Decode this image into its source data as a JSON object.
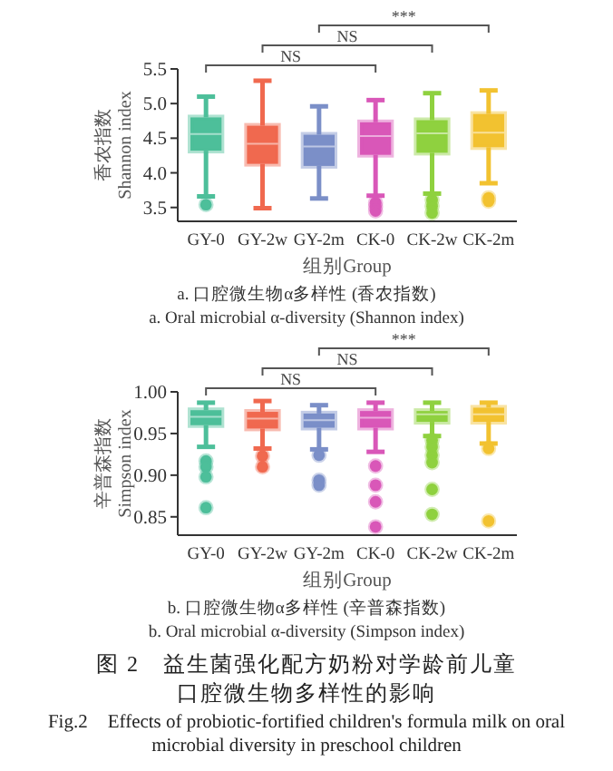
{
  "chart_data": [
    {
      "type": "box",
      "categories": [
        "GY-0",
        "GY-2w",
        "GY-2m",
        "CK-0",
        "CK-2w",
        "CK-2m"
      ],
      "colors": [
        "#4dbf9a",
        "#f0694f",
        "#7b8fc8",
        "#d957b8",
        "#8fd13f",
        "#f2c230"
      ],
      "boxes": [
        {
          "low": 3.66,
          "q1": 4.32,
          "median": 4.56,
          "q3": 4.8,
          "high": 5.1,
          "outliers": [
            3.54
          ]
        },
        {
          "low": 3.49,
          "q1": 4.13,
          "median": 4.42,
          "q3": 4.68,
          "high": 5.33
        },
        {
          "low": 3.63,
          "q1": 4.1,
          "median": 4.38,
          "q3": 4.55,
          "high": 4.96
        },
        {
          "low": 3.67,
          "q1": 4.26,
          "median": 4.53,
          "q3": 4.73,
          "high": 5.05,
          "outliers": [
            3.57,
            3.51,
            3.45
          ]
        },
        {
          "low": 3.7,
          "q1": 4.29,
          "median": 4.57,
          "q3": 4.76,
          "high": 5.15,
          "outliers": [
            3.61,
            3.52,
            3.42
          ]
        },
        {
          "low": 3.85,
          "q1": 4.37,
          "median": 4.58,
          "q3": 4.85,
          "high": 5.19,
          "outliers": [
            3.64,
            3.59
          ]
        }
      ],
      "ylim": [
        3.3,
        5.5
      ],
      "yticks": [
        {
          "value": 3.5,
          "label": "3.5"
        },
        {
          "value": 4.0,
          "label": "4.0"
        },
        {
          "value": 4.5,
          "label": "4.5"
        },
        {
          "value": 5.0,
          "label": "5.0"
        },
        {
          "value": 5.5,
          "label": "5.5"
        }
      ],
      "ylabel": "香农指数\nShannon index",
      "xlabel": "组别Group",
      "title": "a. 口腔微生物α多样性 (香农指数)",
      "subtitle": "a. Oral microbial α-diversity (Shannon index)",
      "annotations": [
        "NS",
        "NS",
        "***"
      ]
    },
    {
      "type": "box",
      "categories": [
        "GY-0",
        "GY-2w",
        "GY-2m",
        "CK-0",
        "CK-2w",
        "CK-2m"
      ],
      "colors": [
        "#4dbf9a",
        "#f0694f",
        "#7b8fc8",
        "#d957b8",
        "#8fd13f",
        "#f2c230"
      ],
      "boxes": [
        {
          "low": 0.934,
          "q1": 0.96,
          "median": 0.97,
          "q3": 0.978,
          "high": 0.987,
          "outliers": [
            0.917,
            0.91,
            0.898,
            0.861
          ]
        },
        {
          "low": 0.932,
          "q1": 0.956,
          "median": 0.968,
          "q3": 0.976,
          "high": 0.989,
          "outliers": [
            0.923,
            0.91
          ]
        },
        {
          "low": 0.931,
          "q1": 0.957,
          "median": 0.966,
          "q3": 0.974,
          "high": 0.984,
          "outliers": [
            0.924,
            0.894,
            0.888
          ]
        },
        {
          "low": 0.928,
          "q1": 0.957,
          "median": 0.969,
          "q3": 0.977,
          "high": 0.987,
          "outliers": [
            0.911,
            0.888,
            0.868,
            0.838
          ]
        },
        {
          "low": 0.947,
          "q1": 0.964,
          "median": 0.973,
          "q3": 0.977,
          "high": 0.987,
          "outliers": [
            0.942,
            0.934,
            0.924,
            0.915,
            0.883,
            0.853
          ]
        },
        {
          "low": 0.938,
          "q1": 0.964,
          "median": 0.973,
          "q3": 0.981,
          "high": 0.987,
          "outliers": [
            0.932,
            0.845
          ]
        }
      ],
      "ylim": [
        0.828,
        1.0
      ],
      "yticks": [
        {
          "value": 0.85,
          "label": "0.85"
        },
        {
          "value": 0.9,
          "label": "0.90"
        },
        {
          "value": 0.95,
          "label": "0.95"
        },
        {
          "value": 1.0,
          "label": "1.00"
        }
      ],
      "ylabel": "辛普森指数\nSimpson index",
      "xlabel": "组别Group",
      "title": "b. 口腔微生物α多样性 (辛普森指数)",
      "subtitle": "b. Oral microbial α-diversity (Simpson index)",
      "annotations": [
        "NS",
        "NS",
        "***",
        "图 2　益生菌强化配方奶粉对学龄前儿童口腔微生物多样性的影响",
        "Fig.2　Effects of probiotic-fortified children's formula milk on oral microbial diversity in preschool children"
      ]
    }
  ]
}
